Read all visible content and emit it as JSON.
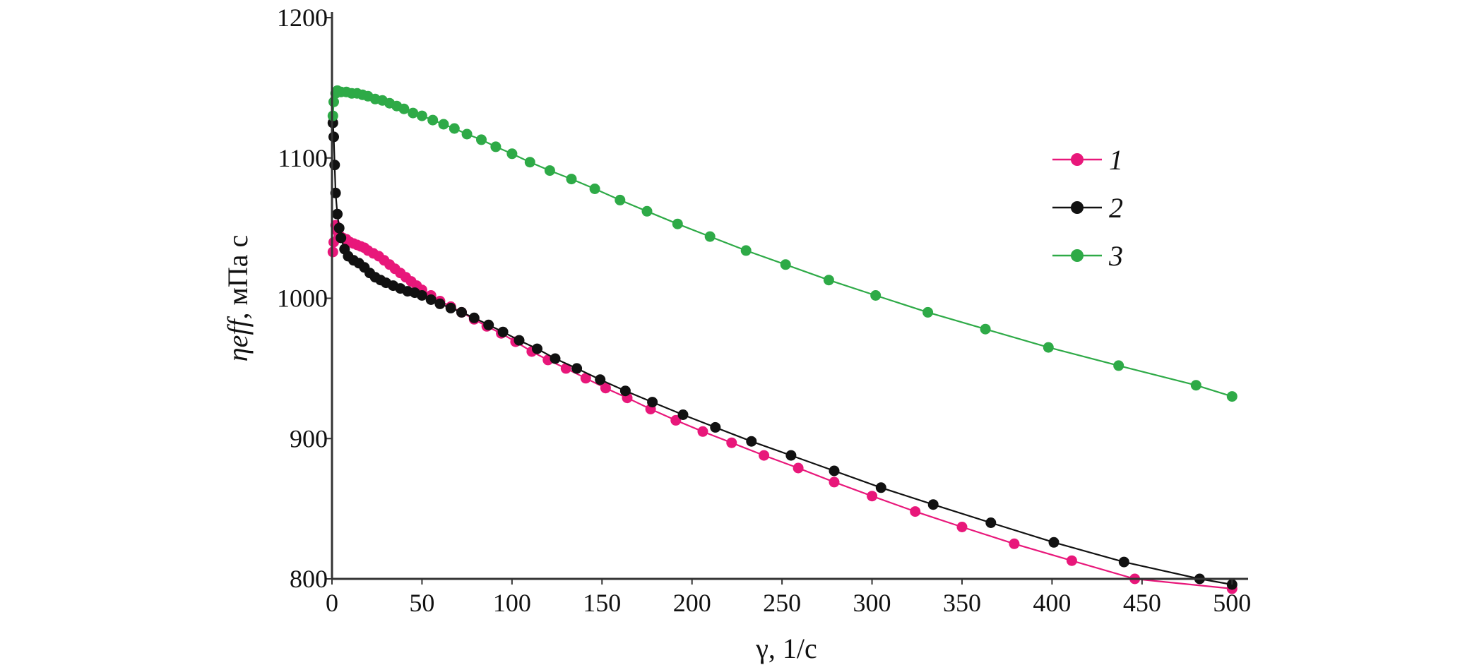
{
  "chart_data": {
    "type": "line",
    "xlabel": "γ, 1/c",
    "ylabel_italic": "ηeff",
    "ylabel_rest": ", мПа с",
    "xlim": [
      0,
      505
    ],
    "ylim": [
      800,
      1200
    ],
    "xticks": [
      0,
      50,
      100,
      150,
      200,
      250,
      300,
      350,
      400,
      450,
      500
    ],
    "yticks": [
      800,
      900,
      1000,
      1100,
      1200
    ],
    "grid": false,
    "legend_position": "top-right",
    "series": [
      {
        "name": "1",
        "color": "#e8177a",
        "marker": "circle",
        "x": [
          0.5,
          1,
          2,
          3,
          4,
          6,
          8,
          10,
          12,
          14,
          16,
          18,
          20,
          23,
          26,
          29,
          32,
          35,
          38,
          41,
          44,
          47,
          50,
          55,
          60,
          66,
          72,
          79,
          86,
          94,
          102,
          111,
          120,
          130,
          141,
          152,
          164,
          177,
          191,
          206,
          222,
          240,
          259,
          279,
          300,
          324,
          350,
          379,
          411,
          446,
          500
        ],
        "y": [
          1033,
          1040,
          1052,
          1048,
          1045,
          1043,
          1042,
          1040,
          1039,
          1038,
          1037,
          1036,
          1034,
          1032,
          1030,
          1027,
          1024,
          1021,
          1018,
          1015,
          1012,
          1009,
          1006,
          1002,
          998,
          994,
          990,
          985,
          980,
          975,
          969,
          962,
          956,
          950,
          943,
          936,
          929,
          921,
          913,
          905,
          897,
          888,
          879,
          869,
          859,
          848,
          837,
          825,
          813,
          800,
          793
        ]
      },
      {
        "name": "2",
        "color": "#111111",
        "marker": "circle",
        "x": [
          0.5,
          1,
          1.5,
          2,
          3,
          4,
          5,
          7,
          9,
          12,
          15,
          18,
          21,
          24,
          27,
          30,
          34,
          38,
          42,
          46,
          50,
          55,
          60,
          66,
          72,
          79,
          87,
          95,
          104,
          114,
          124,
          136,
          149,
          163,
          178,
          195,
          213,
          233,
          255,
          279,
          305,
          334,
          366,
          401,
          440,
          482,
          500
        ],
        "y": [
          1125,
          1115,
          1095,
          1075,
          1060,
          1050,
          1043,
          1035,
          1030,
          1027,
          1025,
          1022,
          1018,
          1015,
          1013,
          1011,
          1009,
          1007,
          1005,
          1004,
          1002,
          999,
          996,
          993,
          990,
          986,
          981,
          976,
          970,
          964,
          957,
          950,
          942,
          934,
          926,
          917,
          908,
          898,
          888,
          877,
          865,
          853,
          840,
          826,
          812,
          800,
          796
        ]
      },
      {
        "name": "3",
        "color": "#2eaa47",
        "marker": "circle",
        "x": [
          0.5,
          1,
          2,
          3,
          5,
          8,
          11,
          14,
          17,
          20,
          24,
          28,
          32,
          36,
          40,
          45,
          50,
          56,
          62,
          68,
          75,
          83,
          91,
          100,
          110,
          121,
          133,
          146,
          160,
          175,
          192,
          210,
          230,
          252,
          276,
          302,
          331,
          363,
          398,
          437,
          480,
          500
        ],
        "y": [
          1130,
          1140,
          1146,
          1148,
          1147,
          1147,
          1146,
          1146,
          1145,
          1144,
          1142,
          1141,
          1139,
          1137,
          1135,
          1132,
          1130,
          1127,
          1124,
          1121,
          1117,
          1113,
          1108,
          1103,
          1097,
          1091,
          1085,
          1078,
          1070,
          1062,
          1053,
          1044,
          1034,
          1024,
          1013,
          1002,
          990,
          978,
          965,
          952,
          938,
          930
        ]
      }
    ]
  }
}
